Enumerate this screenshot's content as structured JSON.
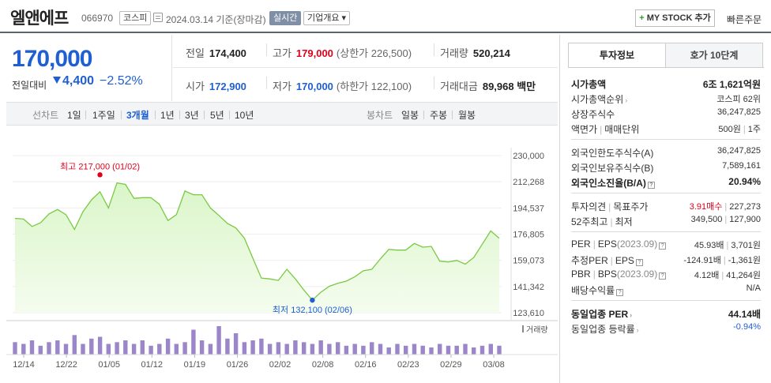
{
  "header": {
    "company_name": "엘앤에프",
    "stock_code": "066970",
    "market_badge": "코스피",
    "base_date": "2024.03.14 기준(장마감)",
    "live_badge": "실시간",
    "company_info_badge": "기업개요 ▾",
    "mystock_plus": "+",
    "mystock_label": "MY STOCK 추가",
    "quick_order": "빠른주문"
  },
  "price": {
    "current": "170,000",
    "prev_diff_label": "전일대비",
    "change_amount": "4,400",
    "change_direction": "down",
    "change_percent": "−2.52%"
  },
  "quotes": {
    "prev_close_label": "전일",
    "prev_close": "174,400",
    "high_label": "고가",
    "high": "179,000",
    "upper_limit": "(상한가 226,500)",
    "volume_label": "거래량",
    "volume": "520,214",
    "open_label": "시가",
    "open": "172,900",
    "low_label": "저가",
    "low": "170,000",
    "lower_limit": "(하한가 122,100)",
    "amount_label": "거래대금",
    "amount": "89,968 백만"
  },
  "period_bar": {
    "line_chart_label": "선차트",
    "line_periods": [
      "1일",
      "1주일",
      "3개월",
      "1년",
      "3년",
      "5년",
      "10년"
    ],
    "active_period": "3개월",
    "candle_chart_label": "봉차트",
    "candle_periods": [
      "일봉",
      "주봉",
      "월봉"
    ]
  },
  "chart_data": {
    "type": "area",
    "y_ticks": [
      "230,000",
      "212,268",
      "194,537",
      "176,805",
      "159,073",
      "141,342",
      "123,610"
    ],
    "ylim": [
      123610,
      230000
    ],
    "x_ticks": [
      "12/14",
      "12/22",
      "01/05",
      "01/12",
      "01/19",
      "01/26",
      "02/02",
      "02/08",
      "02/16",
      "02/23",
      "02/29",
      "03/08"
    ],
    "close": [
      187500,
      187000,
      182000,
      184500,
      190500,
      193500,
      190000,
      180000,
      192000,
      200000,
      205500,
      194500,
      211500,
      210500,
      201000,
      201500,
      201500,
      197000,
      186000,
      190000,
      206000,
      203500,
      203500,
      194500,
      189500,
      184000,
      181000,
      174000,
      160500,
      147000,
      146500,
      145500,
      153000,
      146500,
      139000,
      132100,
      137500,
      141500,
      143500,
      145000,
      148000,
      152000,
      153000,
      160000,
      166500,
      166000,
      166000,
      170500,
      168000,
      168500,
      158500,
      158000,
      159000,
      156500,
      161000,
      170000,
      179000,
      174000
    ],
    "high_label": "최고 217,000 (01/02)",
    "high_value": 217000,
    "high_index": 10,
    "low_label": "최저 132,100 (02/06)",
    "low_value": 132100,
    "low_index": 35,
    "volume_label": "거래량",
    "volume": [
      7,
      6,
      8,
      5,
      7,
      8,
      6,
      11,
      6,
      9,
      10,
      6,
      7,
      8,
      6,
      8,
      5,
      6,
      9,
      6,
      7,
      14,
      8,
      6,
      16,
      9,
      12,
      7,
      8,
      9,
      6,
      7,
      6,
      8,
      7,
      6,
      8,
      6,
      7,
      5,
      6,
      5,
      7,
      6,
      4,
      6,
      5,
      6,
      5,
      4,
      6,
      5,
      5,
      6,
      4,
      5,
      6,
      5
    ]
  },
  "invest_panel": {
    "tab_invest": "투자정보",
    "tab_orderbook": "호가 10단계",
    "market_cap_label": "시가총액",
    "market_cap": "6조 1,621억원",
    "market_cap_rank_label": "시가총액순위",
    "market_cap_rank": "코스피 62위",
    "shares_label": "상장주식수",
    "shares": "36,247,825",
    "par_label": "액면가",
    "trade_unit_label": "매매단위",
    "par_value": "500원",
    "trade_unit": "1주",
    "foreign_limit_label": "외국인한도주식수(A)",
    "foreign_limit": "36,247,825",
    "foreign_hold_label": "외국인보유주식수(B)",
    "foreign_hold": "7,589,161",
    "foreign_ratio_label": "외국인소진율(B/A)",
    "foreign_ratio": "20.94%",
    "opinion_label": "투자의견",
    "target_label": "목표주가",
    "opinion": "3.91매수",
    "target_price": "227,273",
    "week52_label": "52주최고",
    "week52_low_label": "최저",
    "week52_high": "349,500",
    "week52_low": "127,900",
    "per_label": "PER",
    "eps_label": "EPS",
    "eps_year": "(2023.09)",
    "per": "45.93배",
    "eps": "3,701원",
    "est_per_label": "추정PER",
    "est_eps_label": "EPS",
    "est_per": "-124.91배",
    "est_eps": "-1,361원",
    "pbr_label": "PBR",
    "bps_label": "BPS",
    "bps_year": "(2023.09)",
    "pbr": "4.12배",
    "bps": "41,264원",
    "dividend_label": "배당수익률",
    "dividend": "N/A",
    "sector_per_label": "동일업종 PER",
    "sector_per": "44.14배",
    "sector_rate_label": "동일업종 등락률",
    "sector_rate": "-0.94%"
  },
  "colors": {
    "price_blue": "#1f5fd1",
    "price_red": "#e0001b",
    "line_green": "#7ac943",
    "volume_purple": "#9b86c9"
  }
}
